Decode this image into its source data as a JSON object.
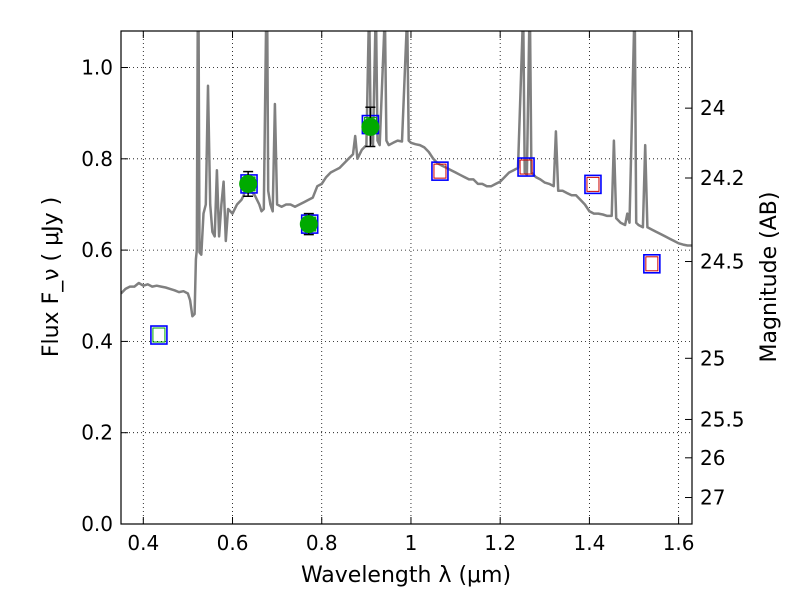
{
  "chart_data": {
    "type": "scatter",
    "xlabel": "Wavelength  λ (μm)",
    "ylabel": "Flux  F_ν  ( μJy )",
    "y2label": "Magnitude (AB)",
    "xlim": [
      0.35,
      1.63
    ],
    "ylim": [
      0.0,
      1.08
    ],
    "grid": true,
    "xticks": [
      0.4,
      0.6,
      0.8,
      1.0,
      1.2,
      1.4,
      1.6
    ],
    "xtick_labels": [
      "0.4",
      "0.6",
      "0.8",
      "1",
      "1.2",
      "1.4",
      "1.6"
    ],
    "yticks": [
      0.0,
      0.2,
      0.4,
      0.6,
      0.8,
      1.0
    ],
    "ytick_labels": [
      "0.0",
      "0.2",
      "0.4",
      "0.6",
      "0.8",
      "1.0"
    ],
    "y2ticks": [
      {
        "label": "24",
        "flux": 0.911
      },
      {
        "label": "24.2",
        "flux": 0.758
      },
      {
        "label": "24.5",
        "flux": 0.575
      },
      {
        "label": "25",
        "flux": 0.363
      },
      {
        "label": "25.5",
        "flux": 0.229
      },
      {
        "label": "26",
        "flux": 0.145
      },
      {
        "label": "27",
        "flux": 0.058
      }
    ],
    "series": [
      {
        "kind": "line",
        "color": "#808080",
        "points": [
          [
            0.35,
            0.505
          ],
          [
            0.36,
            0.515
          ],
          [
            0.37,
            0.52
          ],
          [
            0.38,
            0.52
          ],
          [
            0.39,
            0.528
          ],
          [
            0.4,
            0.522
          ],
          [
            0.41,
            0.525
          ],
          [
            0.42,
            0.52
          ],
          [
            0.43,
            0.522
          ],
          [
            0.44,
            0.52
          ],
          [
            0.45,
            0.518
          ],
          [
            0.46,
            0.515
          ],
          [
            0.47,
            0.512
          ],
          [
            0.48,
            0.508
          ],
          [
            0.49,
            0.51
          ],
          [
            0.5,
            0.505
          ],
          [
            0.505,
            0.49
          ],
          [
            0.51,
            0.455
          ],
          [
            0.515,
            0.46
          ],
          [
            0.518,
            0.58
          ],
          [
            0.52,
            0.6
          ],
          [
            0.522,
            1.08
          ],
          [
            0.524,
            1.08
          ],
          [
            0.526,
            0.595
          ],
          [
            0.53,
            0.59
          ],
          [
            0.535,
            0.68
          ],
          [
            0.54,
            0.7
          ],
          [
            0.545,
            0.96
          ],
          [
            0.55,
            0.7
          ],
          [
            0.555,
            0.64
          ],
          [
            0.56,
            0.63
          ],
          [
            0.565,
            0.775
          ],
          [
            0.57,
            0.63
          ],
          [
            0.575,
            0.7
          ],
          [
            0.58,
            0.75
          ],
          [
            0.585,
            0.62
          ],
          [
            0.59,
            0.69
          ],
          [
            0.6,
            0.68
          ],
          [
            0.61,
            0.7
          ],
          [
            0.62,
            0.71
          ],
          [
            0.625,
            0.72
          ],
          [
            0.63,
            0.74
          ],
          [
            0.64,
            0.73
          ],
          [
            0.65,
            0.72
          ],
          [
            0.66,
            0.7
          ],
          [
            0.665,
            0.685
          ],
          [
            0.67,
            0.69
          ],
          [
            0.675,
            1.08
          ],
          [
            0.678,
            1.08
          ],
          [
            0.68,
            0.73
          ],
          [
            0.685,
            0.7
          ],
          [
            0.69,
            0.685
          ],
          [
            0.695,
            0.92
          ],
          [
            0.7,
            0.7
          ],
          [
            0.71,
            0.695
          ],
          [
            0.72,
            0.7
          ],
          [
            0.73,
            0.7
          ],
          [
            0.74,
            0.695
          ],
          [
            0.75,
            0.7
          ],
          [
            0.76,
            0.705
          ],
          [
            0.77,
            0.71
          ],
          [
            0.78,
            0.715
          ],
          [
            0.79,
            0.74
          ],
          [
            0.8,
            0.745
          ],
          [
            0.81,
            0.76
          ],
          [
            0.82,
            0.77
          ],
          [
            0.83,
            0.775
          ],
          [
            0.84,
            0.78
          ],
          [
            0.85,
            0.79
          ],
          [
            0.86,
            0.8
          ],
          [
            0.87,
            0.81
          ],
          [
            0.875,
            0.85
          ],
          [
            0.88,
            0.8
          ],
          [
            0.89,
            0.82
          ],
          [
            0.9,
            0.83
          ],
          [
            0.905,
            1.08
          ],
          [
            0.907,
            1.08
          ],
          [
            0.91,
            0.84
          ],
          [
            0.915,
            0.83
          ],
          [
            0.92,
            1.08
          ],
          [
            0.922,
            1.08
          ],
          [
            0.925,
            0.84
          ],
          [
            0.93,
            0.83
          ],
          [
            0.94,
            1.08
          ],
          [
            0.942,
            1.08
          ],
          [
            0.945,
            0.84
          ],
          [
            0.95,
            0.83
          ],
          [
            0.96,
            0.835
          ],
          [
            0.97,
            0.84
          ],
          [
            0.98,
            0.838
          ],
          [
            0.99,
            1.08
          ],
          [
            0.992,
            1.08
          ],
          [
            0.995,
            0.84
          ],
          [
            1.0,
            0.835
          ],
          [
            1.01,
            0.832
          ],
          [
            1.02,
            0.83
          ],
          [
            1.03,
            0.825
          ],
          [
            1.04,
            0.815
          ],
          [
            1.05,
            0.8
          ],
          [
            1.06,
            0.79
          ],
          [
            1.07,
            0.785
          ],
          [
            1.08,
            0.78
          ],
          [
            1.09,
            0.775
          ],
          [
            1.1,
            0.77
          ],
          [
            1.11,
            0.765
          ],
          [
            1.12,
            0.76
          ],
          [
            1.13,
            0.755
          ],
          [
            1.14,
            0.755
          ],
          [
            1.15,
            0.745
          ],
          [
            1.16,
            0.745
          ],
          [
            1.17,
            0.74
          ],
          [
            1.18,
            0.74
          ],
          [
            1.19,
            0.745
          ],
          [
            1.2,
            0.75
          ],
          [
            1.21,
            0.76
          ],
          [
            1.22,
            0.77
          ],
          [
            1.23,
            0.775
          ],
          [
            1.24,
            0.78
          ],
          [
            1.25,
            1.08
          ],
          [
            1.252,
            1.08
          ],
          [
            1.255,
            0.77
          ],
          [
            1.26,
            0.765
          ],
          [
            1.265,
            1.08
          ],
          [
            1.267,
            1.08
          ],
          [
            1.27,
            0.77
          ],
          [
            1.28,
            0.76
          ],
          [
            1.29,
            0.755
          ],
          [
            1.3,
            0.748
          ],
          [
            1.31,
            0.745
          ],
          [
            1.32,
            0.74
          ],
          [
            1.325,
            0.86
          ],
          [
            1.33,
            0.73
          ],
          [
            1.34,
            0.73
          ],
          [
            1.35,
            0.725
          ],
          [
            1.36,
            0.72
          ],
          [
            1.37,
            0.72
          ],
          [
            1.38,
            0.71
          ],
          [
            1.39,
            0.7
          ],
          [
            1.4,
            0.685
          ],
          [
            1.41,
            0.68
          ],
          [
            1.42,
            0.68
          ],
          [
            1.43,
            0.678
          ],
          [
            1.44,
            0.675
          ],
          [
            1.45,
            0.675
          ],
          [
            1.455,
            0.84
          ],
          [
            1.46,
            0.67
          ],
          [
            1.47,
            0.66
          ],
          [
            1.48,
            0.655
          ],
          [
            1.485,
            0.68
          ],
          [
            1.49,
            0.66
          ],
          [
            1.5,
            1.08
          ],
          [
            1.502,
            1.08
          ],
          [
            1.505,
            0.66
          ],
          [
            1.51,
            0.655
          ],
          [
            1.52,
            0.65
          ],
          [
            1.525,
            0.83
          ],
          [
            1.53,
            0.65
          ],
          [
            1.54,
            0.645
          ],
          [
            1.55,
            0.64
          ],
          [
            1.56,
            0.635
          ],
          [
            1.57,
            0.63
          ],
          [
            1.58,
            0.625
          ],
          [
            1.59,
            0.62
          ],
          [
            1.6,
            0.615
          ],
          [
            1.61,
            0.612
          ],
          [
            1.62,
            0.61
          ],
          [
            1.63,
            0.61
          ]
        ]
      },
      {
        "kind": "squares",
        "edge_color": "#0000ff",
        "points": [
          [
            0.435,
            0.414
          ],
          [
            0.637,
            0.745
          ],
          [
            0.773,
            0.657
          ],
          [
            0.909,
            0.875
          ],
          [
            1.065,
            0.773
          ],
          [
            1.258,
            0.782
          ],
          [
            1.408,
            0.744
          ],
          [
            1.54,
            0.57
          ]
        ]
      },
      {
        "kind": "squares_inner",
        "inner_colors": [
          "#00aa00",
          "#00aa00",
          "#00aa00",
          "#00aa00",
          "#cc0000",
          "#cc0000",
          "#cc0000",
          "#cc0000"
        ],
        "points": [
          [
            0.435,
            0.414
          ],
          [
            0.637,
            0.745
          ],
          [
            0.773,
            0.657
          ],
          [
            0.909,
            0.875
          ],
          [
            1.065,
            0.773
          ],
          [
            1.258,
            0.782
          ],
          [
            1.408,
            0.744
          ],
          [
            1.54,
            0.57
          ]
        ]
      },
      {
        "kind": "errorbar",
        "marker_color": "#00aa00",
        "points": [
          {
            "x": 0.635,
            "y": 0.745,
            "err": 0.027
          },
          {
            "x": 0.771,
            "y": 0.657,
            "err": 0.023
          },
          {
            "x": 0.909,
            "y": 0.87,
            "err": 0.043
          }
        ]
      }
    ]
  }
}
